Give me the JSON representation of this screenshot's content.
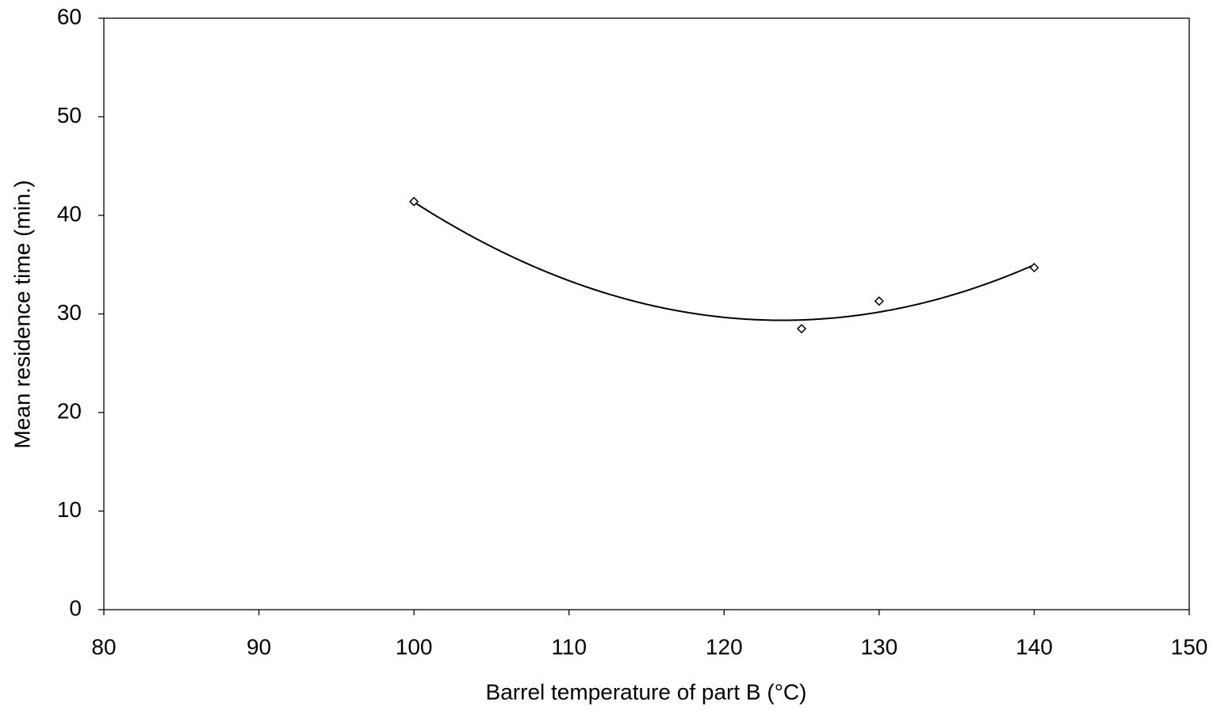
{
  "chart_data": {
    "type": "scatter",
    "x_label": "Barrel temperature of part B (°C)",
    "y_label": "Mean residence time (min.)",
    "series": [
      {
        "x": [
          100,
          125,
          130,
          140
        ],
        "values": [
          41.4,
          28.5,
          31.3,
          34.7
        ],
        "color": "#000000",
        "marker": "diamond",
        "trendline": "polynomial",
        "trendline_order": 2
      }
    ],
    "xlim": [
      80,
      150
    ],
    "xticks": [
      80,
      90,
      100,
      110,
      120,
      130,
      140,
      150
    ],
    "ylim": [
      0,
      60
    ],
    "yticks": [
      0,
      10,
      20,
      30,
      40,
      50,
      60
    ],
    "grid": false
  }
}
